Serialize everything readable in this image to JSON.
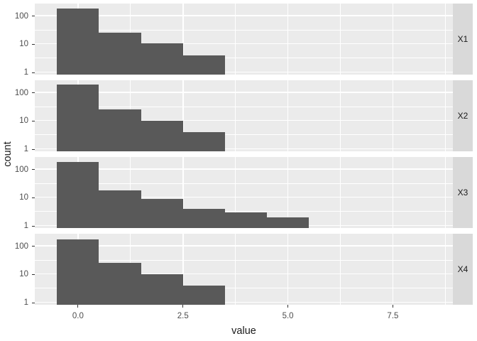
{
  "chart_data": {
    "type": "bar",
    "subtype": "faceted-histogram",
    "title": "",
    "xlabel": "value",
    "ylabel": "count",
    "y_scale": "log10",
    "x_range": [
      -1.03,
      8.93
    ],
    "x_major_ticks": [
      0,
      2.5,
      5,
      7.5
    ],
    "x_major_tick_labels": [
      "0.0",
      "2.5",
      "5.0",
      "7.5"
    ],
    "x_minor_ticks": [
      1.25,
      3.75,
      6.25,
      8.75
    ],
    "y_major_ticks": [
      1,
      10,
      100
    ],
    "y_major_tick_labels": [
      "1",
      "10",
      "100"
    ],
    "y_minor_ticks": [
      3.1623,
      31.623
    ],
    "bin_start": -0.5,
    "bin_width": 1,
    "facets": [
      {
        "label": "X1",
        "counts": [
          185,
          26,
          11,
          4
        ]
      },
      {
        "label": "X2",
        "counts": [
          200,
          25,
          10,
          4
        ]
      },
      {
        "label": "X3",
        "counts": [
          185,
          18,
          9,
          4,
          3,
          2
        ]
      },
      {
        "label": "X4",
        "counts": [
          170,
          26,
          10,
          4
        ]
      }
    ],
    "colors": {
      "bar": "#595959",
      "panel_bg": "#EBEBEB",
      "grid": "#FFFFFF",
      "strip_bg": "#D9D9D9",
      "strip_text": "#1A1A1A",
      "axis_text": "#4D4D4D",
      "tick_mark": "#333333",
      "background": "#FFFFFF"
    }
  }
}
